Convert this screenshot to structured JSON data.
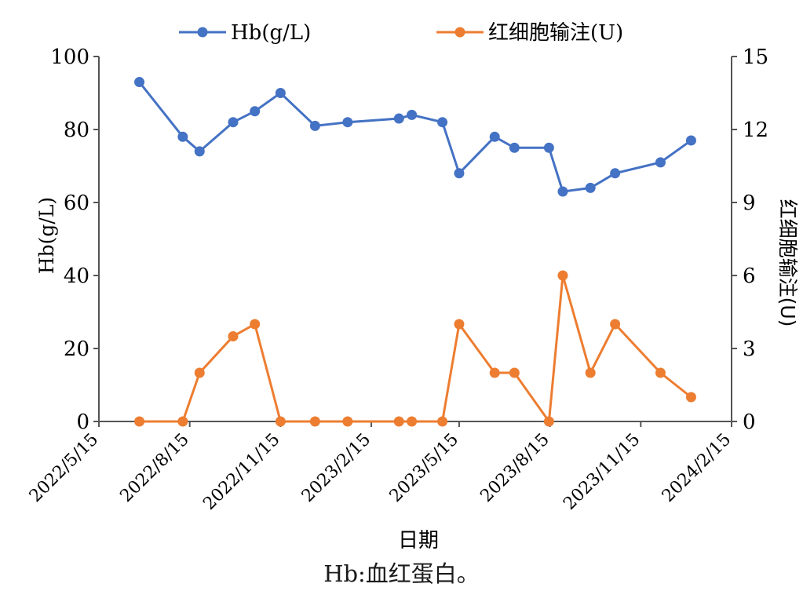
{
  "chart_data": {
    "type": "line",
    "xlabel": "日期",
    "ylabel_left": "Hb(g/L)",
    "ylabel_right": "红细胞输注(U)",
    "x_ticks": [
      "2022/5/15",
      "2022/8/15",
      "2022/11/15",
      "2023/2/15",
      "2023/5/15",
      "2023/8/15",
      "2023/11/15",
      "2024/2/15"
    ],
    "x_range": [
      "2022/5/15",
      "2024/2/15"
    ],
    "y_left": {
      "ticks": [
        0,
        20,
        40,
        60,
        80,
        100
      ],
      "lim": [
        0,
        100
      ]
    },
    "y_right": {
      "ticks": [
        0,
        3,
        6,
        9,
        12,
        15
      ],
      "lim": [
        0,
        15
      ]
    },
    "legend_position": "top",
    "x": [
      "2022/6/25",
      "2022/8/8",
      "2022/8/25",
      "2022/9/28",
      "2022/10/20",
      "2022/11/15",
      "2022/12/20",
      "2023/1/22",
      "2023/3/15",
      "2023/3/28",
      "2023/4/28",
      "2023/5/15",
      "2023/6/20",
      "2023/7/10",
      "2023/8/14",
      "2023/8/28",
      "2023/9/25",
      "2023/10/20",
      "2023/12/5",
      "2024/1/5"
    ],
    "series": [
      {
        "name": "Hb(g/L)",
        "axis": "left",
        "color": "#4472c4",
        "values": [
          93,
          78,
          74,
          82,
          85,
          90,
          81,
          82,
          83,
          84,
          82,
          68,
          78,
          75,
          75,
          63,
          64,
          68,
          71,
          77
        ]
      },
      {
        "name": "红细胞输注(U)",
        "axis": "right",
        "color": "#ed7d31",
        "values": [
          0,
          0,
          2,
          3.5,
          4,
          0,
          0,
          0,
          0,
          0,
          0,
          4,
          2,
          2,
          0,
          6,
          2,
          4,
          2,
          1
        ]
      }
    ]
  },
  "caption": "Hb:血红蛋白。"
}
